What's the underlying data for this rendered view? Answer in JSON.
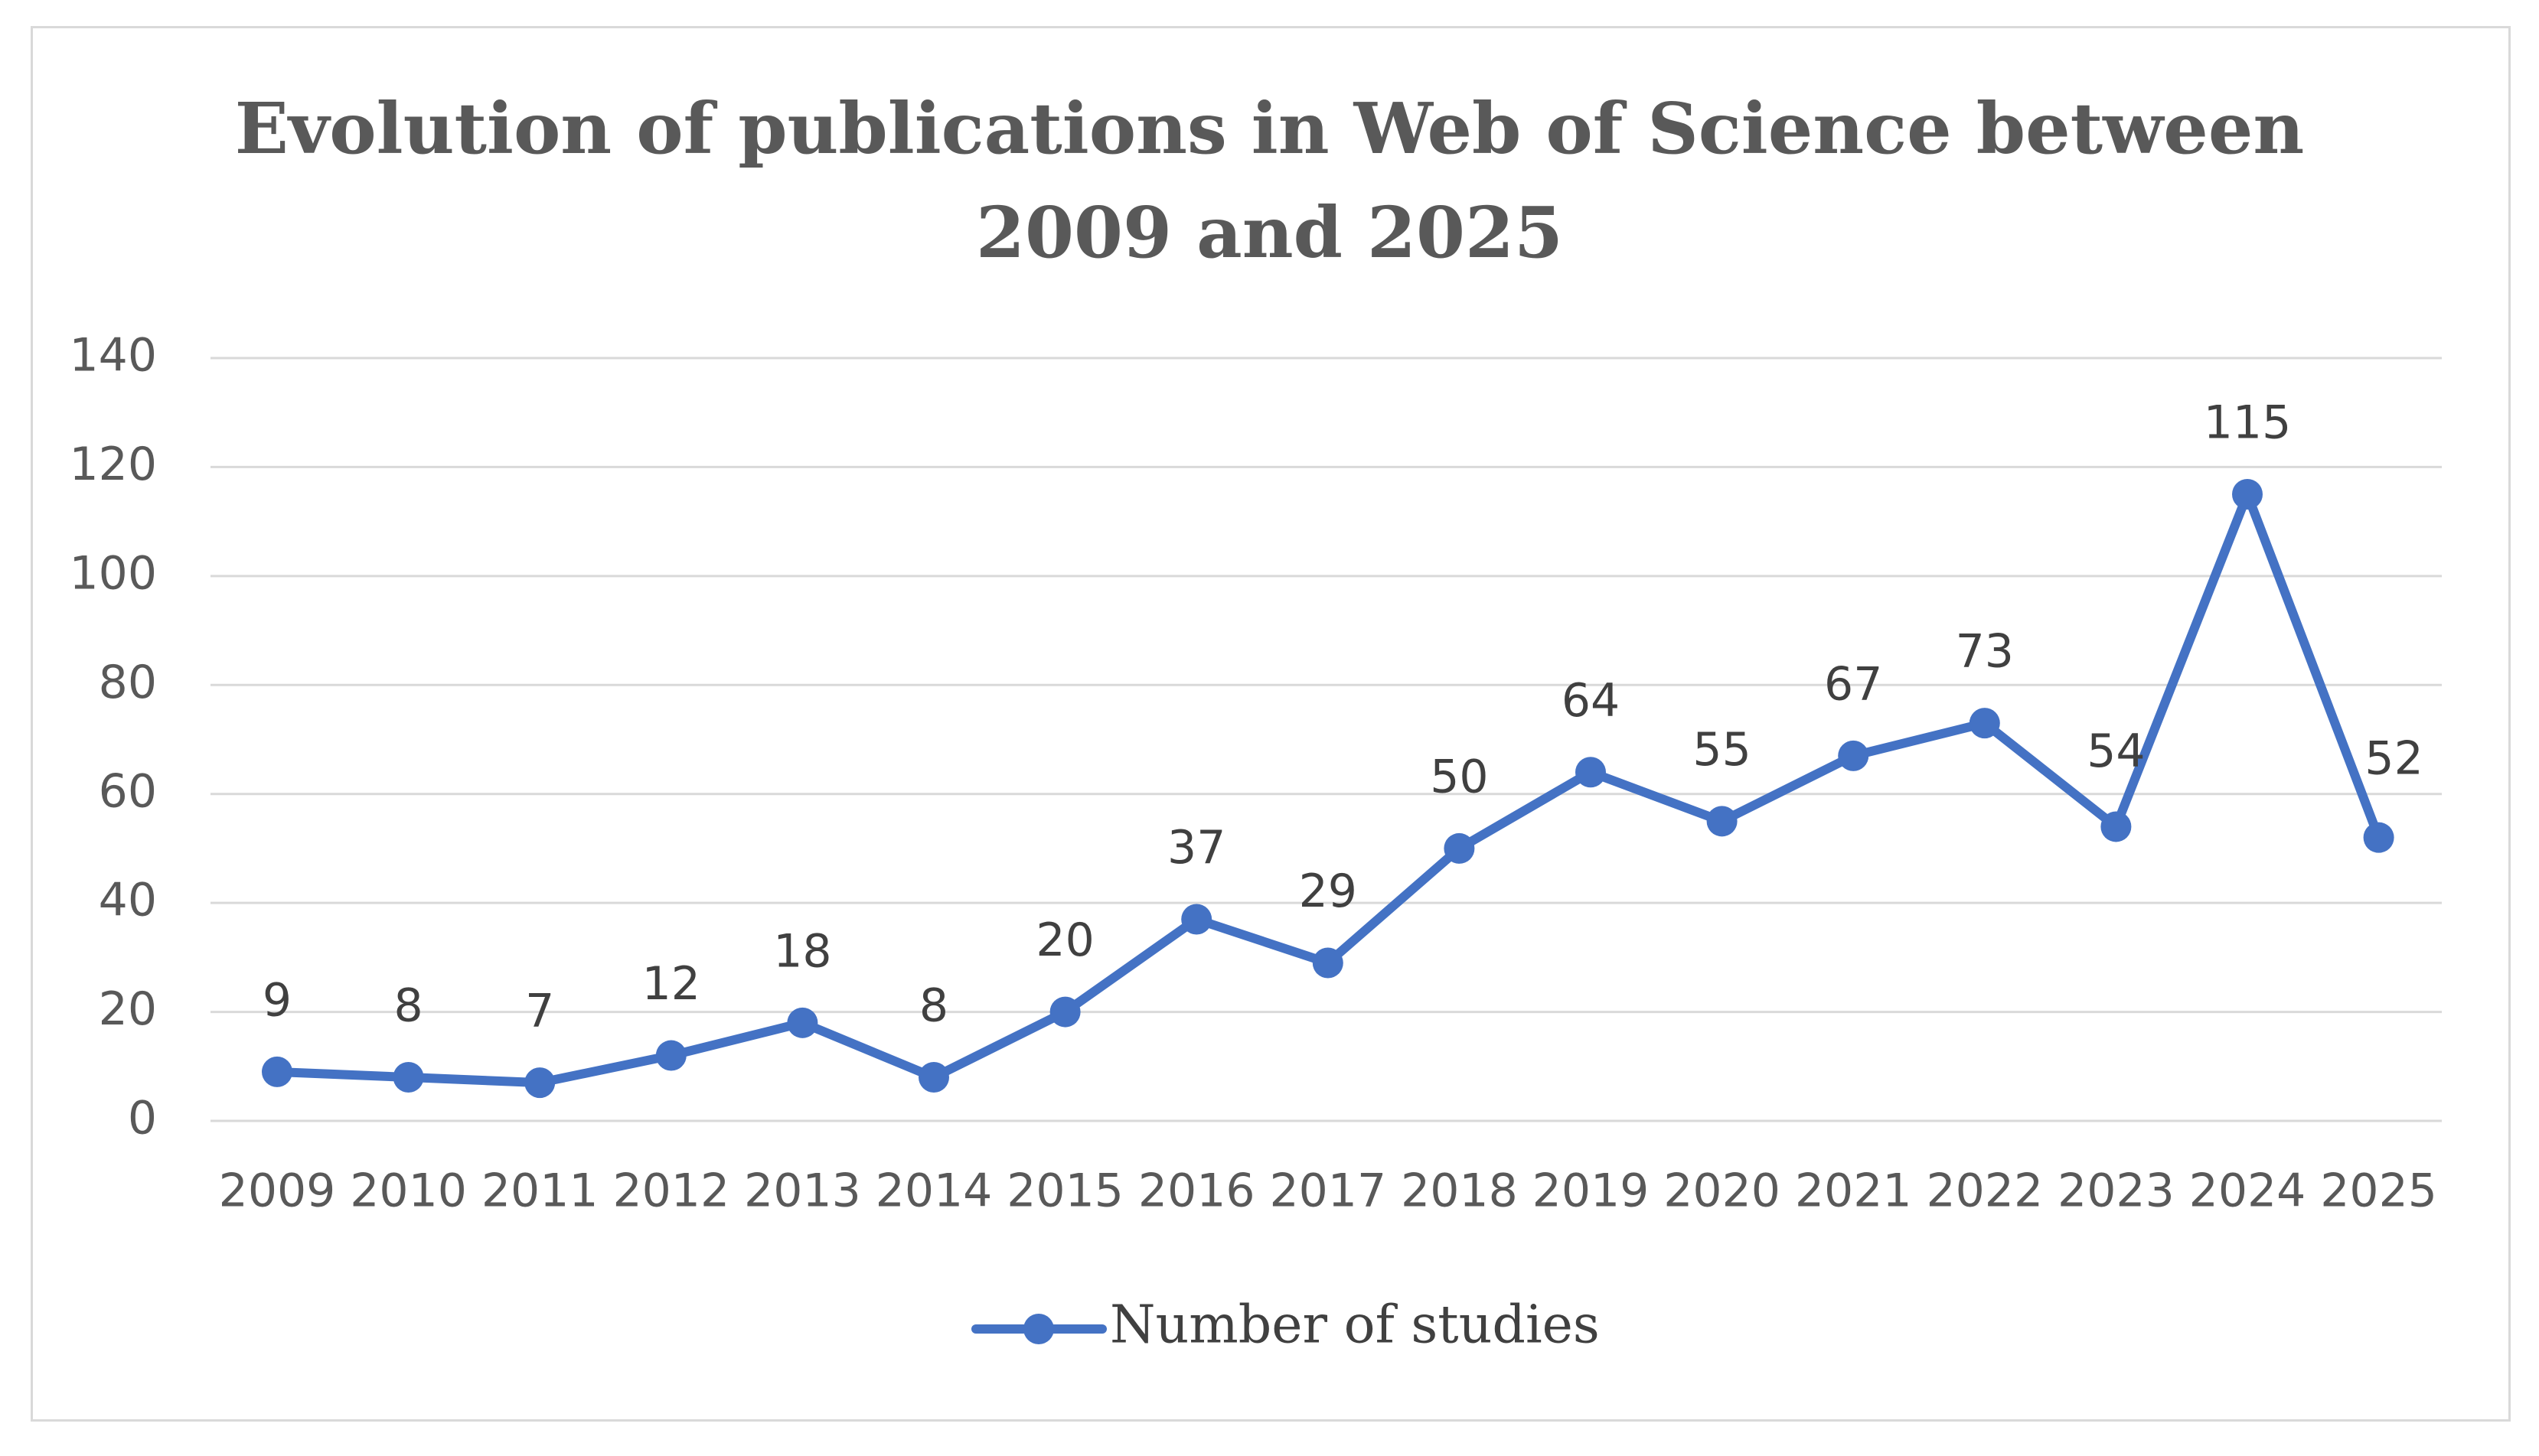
{
  "chart_data": {
    "type": "line",
    "title_line1": "Evolution of publications in Web of Science between",
    "title_line2": "2009 and 2025",
    "categories": [
      "2009",
      "2010",
      "2011",
      "2012",
      "2013",
      "2014",
      "2015",
      "2016",
      "2017",
      "2018",
      "2019",
      "2020",
      "2021",
      "2022",
      "2023",
      "2024",
      "2025"
    ],
    "series": [
      {
        "name": "Number of studies",
        "values": [
          9,
          8,
          7,
          12,
          18,
          8,
          20,
          37,
          29,
          50,
          64,
          55,
          67,
          73,
          54,
          115,
          52
        ],
        "color": "#4472c4"
      }
    ],
    "ylim": [
      0,
      140
    ],
    "yticks": [
      0,
      20,
      40,
      60,
      80,
      100,
      120,
      140
    ],
    "grid": true,
    "legend": "bottom",
    "xlabel": "",
    "ylabel": ""
  }
}
